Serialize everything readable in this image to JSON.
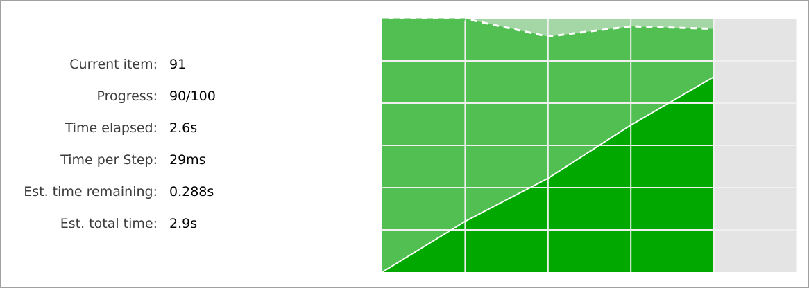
{
  "stats": [
    {
      "label": "Current item:",
      "value": "91"
    },
    {
      "label": "Progress:",
      "value": "90/100"
    },
    {
      "label": "Time elapsed:",
      "value": "2.6s"
    },
    {
      "label": "Time per Step:",
      "value": "29ms"
    },
    {
      "label": "Est. time remaining:",
      "value": "0.288s"
    },
    {
      "label": "Est. total time:",
      "value": "2.9s"
    }
  ],
  "chart_data": {
    "type": "area",
    "x": [
      0,
      1,
      2,
      3,
      4
    ],
    "x_slots": 5,
    "grid": true,
    "ylim": [
      0,
      1
    ],
    "series": [
      {
        "values": [
          0,
          0.2,
          0.37,
          0.58,
          0.77
        ],
        "color": "#00a800"
      },
      {
        "values": [
          1.0,
          1.0,
          0.93,
          0.97,
          0.96
        ],
        "color": "#52bf52",
        "dashed": true
      }
    ],
    "colors": {
      "remaining_bg": "#e4e4e4",
      "headroom": "#a5d6a5",
      "grid": "#f0f0f0"
    }
  }
}
